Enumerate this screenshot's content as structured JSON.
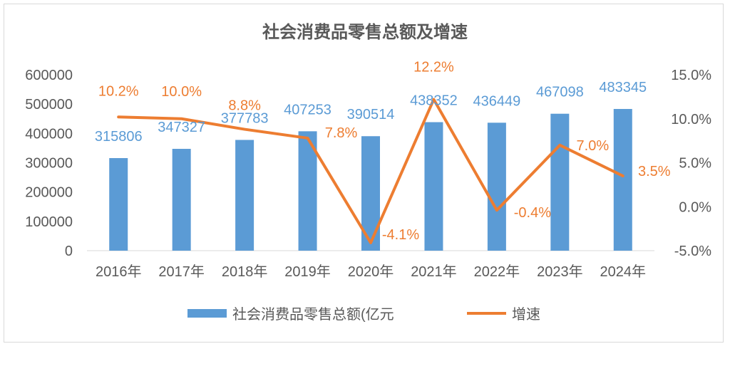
{
  "chart_data": {
    "type": "bar+line",
    "title": "社会消费品零售总额及增速",
    "categories": [
      "2016年",
      "2017年",
      "2018年",
      "2019年",
      "2020年",
      "2021年",
      "2022年",
      "2023年",
      "2024年"
    ],
    "series": [
      {
        "name": "社会消费品零售总额(亿元",
        "type": "bar",
        "axis": "left",
        "color": "#5b9bd5",
        "values": [
          315806,
          347327,
          377783,
          407253,
          390514,
          438352,
          436449,
          467098,
          483345
        ],
        "labels": [
          "315806",
          "347327",
          "377783",
          "407253",
          "390514",
          "438352",
          "436449",
          "467098",
          "483345"
        ]
      },
      {
        "name": "增速",
        "type": "line",
        "axis": "right",
        "color": "#ed7d31",
        "values": [
          10.2,
          10.0,
          8.8,
          7.8,
          -4.1,
          12.2,
          -0.4,
          7.0,
          3.5
        ],
        "labels": [
          "10.2%",
          "10.0%",
          "8.8%",
          "7.8%",
          "-4.1%",
          "12.2%",
          "-0.4%",
          "7.0%",
          "3.5%"
        ]
      }
    ],
    "y_left": {
      "range": [
        0,
        600000
      ],
      "ticks": [
        "0",
        "100000",
        "200000",
        "300000",
        "400000",
        "500000",
        "600000"
      ]
    },
    "y_right": {
      "range": [
        -5,
        15
      ],
      "ticks": [
        "-5.0%",
        "0.0%",
        "5.0%",
        "10.0%",
        "15.0%"
      ]
    },
    "legend": "bottom",
    "grid": false
  }
}
